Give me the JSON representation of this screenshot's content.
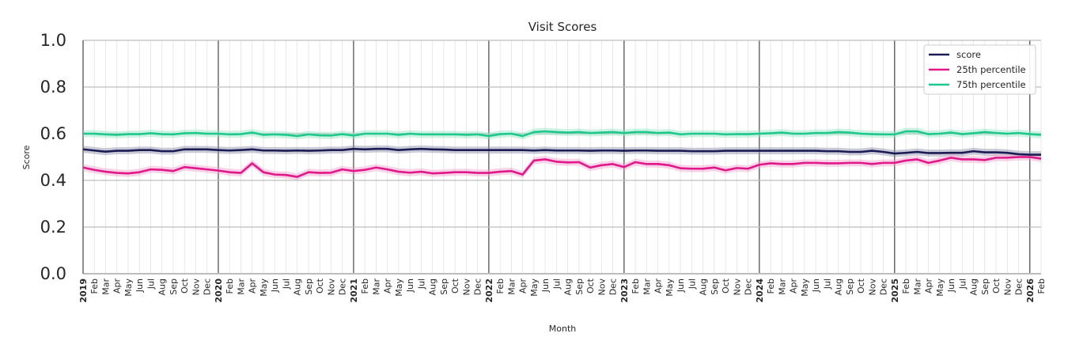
{
  "chart_data": {
    "type": "line",
    "title": "Visit Scores",
    "xlabel": "Month",
    "ylabel": "Score",
    "ylim": [
      0,
      1
    ],
    "yticks": [
      "0.0",
      "0.2",
      "0.4",
      "0.6",
      "0.8",
      "1.0"
    ],
    "grid": true,
    "legend_position": "top-right",
    "x_start": "2019-01",
    "x_end": "2026-02",
    "month_labels": [
      "Feb",
      "Mar",
      "Apr",
      "May",
      "Jun",
      "Jul",
      "Aug",
      "Sep",
      "Oct",
      "Nov",
      "Dec"
    ],
    "years": [
      "2019",
      "2020",
      "2021",
      "2022",
      "2023",
      "2024",
      "2025",
      "2026"
    ],
    "series": [
      {
        "name": "score",
        "color": "#1c1c54",
        "band_color": "#8a8aa8",
        "values": [
          0.533,
          0.528,
          0.523,
          0.527,
          0.527,
          0.53,
          0.53,
          0.525,
          0.525,
          0.533,
          0.533,
          0.533,
          0.53,
          0.528,
          0.53,
          0.533,
          0.528,
          0.528,
          0.527,
          0.528,
          0.527,
          0.528,
          0.53,
          0.53,
          0.535,
          0.533,
          0.535,
          0.535,
          0.53,
          0.533,
          0.535,
          0.533,
          0.532,
          0.53,
          0.53,
          0.53,
          0.53,
          0.53,
          0.53,
          0.53,
          0.528,
          0.53,
          0.528,
          0.528,
          0.528,
          0.527,
          0.528,
          0.528,
          0.527,
          0.528,
          0.528,
          0.527,
          0.527,
          0.527,
          0.525,
          0.525,
          0.525,
          0.527,
          0.527,
          0.527,
          0.527,
          0.527,
          0.527,
          0.527,
          0.527,
          0.527,
          0.525,
          0.525,
          0.522,
          0.522,
          0.527,
          0.522,
          0.515,
          0.518,
          0.522,
          0.517,
          0.517,
          0.518,
          0.518,
          0.525,
          0.52,
          0.52,
          0.518,
          0.512,
          0.51,
          0.51
        ]
      },
      {
        "name": "25th percentile",
        "color": "#e0188a",
        "band_color": "#f0a0cc",
        "values": [
          0.455,
          0.445,
          0.437,
          0.432,
          0.43,
          0.435,
          0.447,
          0.445,
          0.44,
          0.457,
          0.452,
          0.447,
          0.442,
          0.435,
          0.432,
          0.473,
          0.435,
          0.425,
          0.423,
          0.415,
          0.435,
          0.432,
          0.433,
          0.447,
          0.44,
          0.445,
          0.455,
          0.447,
          0.437,
          0.433,
          0.437,
          0.43,
          0.432,
          0.435,
          0.435,
          0.432,
          0.432,
          0.437,
          0.44,
          0.425,
          0.485,
          0.49,
          0.48,
          0.477,
          0.478,
          0.455,
          0.465,
          0.47,
          0.457,
          0.478,
          0.47,
          0.47,
          0.465,
          0.452,
          0.45,
          0.45,
          0.455,
          0.443,
          0.453,
          0.45,
          0.467,
          0.473,
          0.47,
          0.47,
          0.475,
          0.475,
          0.473,
          0.473,
          0.475,
          0.475,
          0.47,
          0.475,
          0.475,
          0.485,
          0.49,
          0.475,
          0.485,
          0.497,
          0.49,
          0.49,
          0.487,
          0.497,
          0.497,
          0.5,
          0.5,
          0.493
        ]
      },
      {
        "name": "75th percentile",
        "color": "#1ec88c",
        "band_color": "#90e4c4",
        "values": [
          0.6,
          0.6,
          0.597,
          0.595,
          0.598,
          0.598,
          0.602,
          0.598,
          0.597,
          0.602,
          0.603,
          0.6,
          0.6,
          0.597,
          0.598,
          0.605,
          0.595,
          0.597,
          0.595,
          0.59,
          0.597,
          0.593,
          0.592,
          0.598,
          0.592,
          0.6,
          0.6,
          0.6,
          0.595,
          0.6,
          0.597,
          0.597,
          0.597,
          0.597,
          0.595,
          0.597,
          0.59,
          0.598,
          0.6,
          0.59,
          0.607,
          0.61,
          0.607,
          0.605,
          0.607,
          0.603,
          0.605,
          0.607,
          0.603,
          0.607,
          0.607,
          0.603,
          0.605,
          0.597,
          0.6,
          0.6,
          0.6,
          0.597,
          0.598,
          0.598,
          0.6,
          0.602,
          0.605,
          0.6,
          0.6,
          0.603,
          0.603,
          0.607,
          0.605,
          0.6,
          0.598,
          0.597,
          0.597,
          0.61,
          0.61,
          0.598,
          0.6,
          0.605,
          0.598,
          0.602,
          0.607,
          0.603,
          0.6,
          0.603,
          0.598,
          0.595
        ]
      }
    ]
  }
}
